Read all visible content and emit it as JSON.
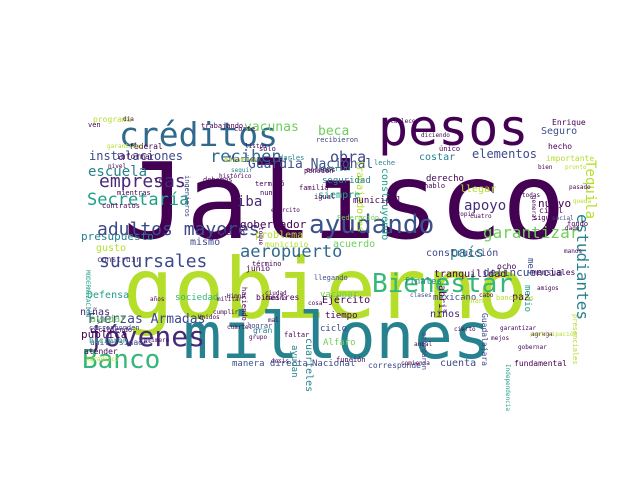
{
  "words": [
    {
      "t": "Jalisco",
      "c": "#440154"
    },
    {
      "t": "gobierno",
      "c": "#b5de2b"
    },
    {
      "t": "millones",
      "c": "#26828e"
    },
    {
      "t": "pesos",
      "c": "#440154"
    },
    {
      "t": "créditos",
      "c": "#31688e"
    },
    {
      "t": "ayudando",
      "c": "#3b528b"
    },
    {
      "t": "jóvenes",
      "c": "#482878"
    },
    {
      "t": "Bienestar",
      "c": "#35b779"
    },
    {
      "t": "Banco",
      "c": "#35b779"
    },
    {
      "t": "adultos mayores",
      "c": "#3e4989"
    },
    {
      "t": "sucursales",
      "c": "#3e4989"
    },
    {
      "t": "empresas",
      "c": "#482878"
    },
    {
      "t": "Secretaría",
      "c": "#1f9e89"
    },
    {
      "t": "garantizar",
      "c": "#6ece58"
    },
    {
      "t": "estudiantes",
      "c": "#26828e"
    },
    {
      "t": "aeropuerto",
      "c": "#31688e"
    },
    {
      "t": "reciben",
      "c": "#31688e"
    },
    {
      "t": "apoyo",
      "c": "#472d7b"
    },
    {
      "t": "Tequila",
      "c": "#b5de2b"
    },
    {
      "t": "obra",
      "c": "#3e4989"
    },
    {
      "t": "escuela",
      "c": "#26828e"
    },
    {
      "t": "elementos",
      "c": "#3e4989"
    },
    {
      "t": "vacunas",
      "c": "#6ece58"
    },
    {
      "t": "beca",
      "c": "#6ece58"
    },
    {
      "t": "Guardia Nacional",
      "c": "#3b528b"
    },
    {
      "t": "Fuerzas Armadas",
      "c": "#3e4989"
    },
    {
      "t": "instalaciones",
      "c": "#3e4989"
    },
    {
      "t": "país",
      "c": "#26828e"
    },
    {
      "t": "iba",
      "c": "#482878"
    },
    {
      "t": "gobernador",
      "c": "#440154"
    },
    {
      "t": "tranquilidad",
      "c": "#440154"
    },
    {
      "t": "delincuencia",
      "c": "#3e4989"
    },
    {
      "t": "construcción",
      "c": "#3e4989"
    },
    {
      "t": "nuevo",
      "c": "#440154"
    },
    {
      "t": "Seguro",
      "c": "#3b528b"
    },
    {
      "t": "Enrique",
      "c": "#440154"
    },
    {
      "t": "hecho",
      "c": "#440154"
    },
    {
      "t": "presupuesto",
      "c": "#26828e"
    },
    {
      "t": "pública",
      "c": "#440154"
    },
    {
      "t": "niñas",
      "c": "#482878"
    },
    {
      "t": "niños",
      "c": "#482878"
    },
    {
      "t": "mismo",
      "c": "#3e4989"
    },
    {
      "t": "problema",
      "c": "#b5de2b"
    },
    {
      "t": "acuerdo",
      "c": "#6ece58"
    },
    {
      "t": "construyendo",
      "c": "#1f9e89"
    },
    {
      "t": "trabajadores",
      "c": "#b5de2b"
    },
    {
      "t": "seguridad",
      "c": "#26828e"
    },
    {
      "t": "siempre",
      "c": "#1f9e89"
    },
    {
      "t": "municipal",
      "c": "#440154"
    },
    {
      "t": "derecho",
      "c": "#440154"
    },
    {
      "t": "costar",
      "c": "#26828e"
    },
    {
      "t": "llegar",
      "c": "#b5de2b"
    },
    {
      "t": "Ejército",
      "c": "#440154"
    },
    {
      "t": "ciclo",
      "c": "#3e4989"
    },
    {
      "t": "tiempo",
      "c": "#440154"
    },
    {
      "t": "Alfaro",
      "c": "#6ece58"
    },
    {
      "t": "cuarteles",
      "c": "#26828e"
    },
    {
      "t": "sociedad",
      "c": "#35b779"
    },
    {
      "t": "Defensa",
      "c": "#1f9e89"
    },
    {
      "t": "ayudar",
      "c": "#6ece58"
    },
    {
      "t": "construir",
      "c": "#472d7b"
    },
    {
      "t": "gusto",
      "c": "#b5de2b"
    },
    {
      "t": "atender",
      "c": "#440154"
    },
    {
      "t": "universidades",
      "c": "#3e4989"
    },
    {
      "t": "manera directa",
      "c": "#3b528b"
    },
    {
      "t": "Nacional",
      "c": "#3e4989"
    },
    {
      "t": "corresponde",
      "c": "#3e4989"
    },
    {
      "t": "cuenta",
      "c": "#3e4989"
    },
    {
      "t": "fundamental",
      "c": "#440154"
    },
    {
      "t": "mexicano",
      "c": "#3e4989"
    },
    {
      "t": "Guadalajara",
      "c": "#3e4989"
    },
    {
      "t": "ayudan",
      "c": "#26828e"
    },
    {
      "t": "vacunar",
      "c": "#6ece58"
    },
    {
      "t": "bimestres",
      "c": "#440154"
    },
    {
      "t": "junio",
      "c": "#440154"
    },
    {
      "t": "término",
      "c": "#440154"
    },
    {
      "t": "pueblo",
      "c": "#440154"
    },
    {
      "t": "municipio",
      "c": "#b5de2b"
    },
    {
      "t": "abril",
      "c": "#440154"
    },
    {
      "t": "medio",
      "c": "#1f9e89"
    },
    {
      "t": "mes",
      "c": "#3e4989"
    },
    {
      "t": "finales",
      "c": "#26828e"
    },
    {
      "t": "paz",
      "c": "#440154"
    },
    {
      "t": "ocho",
      "c": "#440154"
    },
    {
      "t": "mensuales",
      "c": "#440154"
    },
    {
      "t": "civil",
      "c": "#440154"
    },
    {
      "t": "Federación",
      "c": "#6ece58"
    },
    {
      "t": "Marina",
      "c": "#3e4989"
    },
    {
      "t": "familia",
      "c": "#440154"
    },
    {
      "t": "terminó",
      "c": "#440154"
    },
    {
      "t": "debemos",
      "c": "#440154"
    },
    {
      "t": "federal",
      "c": "#440154"
    },
    {
      "t": "trabajando",
      "c": "#440154"
    },
    {
      "t": "programa",
      "c": "#b5de2b"
    },
    {
      "t": "corte",
      "c": "#440154"
    },
    {
      "t": "sólo",
      "c": "#440154"
    },
    {
      "t": "nunca",
      "c": "#440154"
    },
    {
      "t": "recibieron",
      "c": "#3e4989"
    },
    {
      "t": "superior",
      "c": "#1f9e89"
    },
    {
      "t": "pensión",
      "c": "#440154"
    },
    {
      "t": "igual",
      "c": "#440154"
    },
    {
      "t": "hablo",
      "c": "#440154"
    },
    {
      "t": "leche",
      "c": "#26828e"
    },
    {
      "t": "único",
      "c": "#440154"
    },
    {
      "t": "importante",
      "c": "#b5de2b"
    },
    {
      "t": "bien",
      "c": "#440154"
    },
    {
      "t": "todas",
      "c": "#440154"
    },
    {
      "t": "sigue",
      "c": "#440154"
    },
    {
      "t": "gran",
      "c": "#26828e"
    },
    {
      "t": "lograr",
      "c": "#3e4989"
    },
    {
      "t": "recibiendo",
      "c": "#440154"
    },
    {
      "t": "hicieron",
      "c": "#1f9e89"
    },
    {
      "t": "primero",
      "c": "#440154"
    },
    {
      "t": "años",
      "c": "#440154"
    },
    {
      "t": "nivel",
      "c": "#440154"
    },
    {
      "t": "informar",
      "c": "#440154"
    },
    {
      "t": "Tren",
      "c": "#440154"
    },
    {
      "t": "mientras",
      "c": "#440154"
    },
    {
      "t": "contratos",
      "c": "#440154"
    },
    {
      "t": "ingenieros",
      "c": "#3e4989"
    },
    {
      "t": "esfuerzo",
      "c": "#b5de2b"
    },
    {
      "t": "seguir",
      "c": "#26828e"
    },
    {
      "t": "darles",
      "c": "#26828e"
    },
    {
      "t": "estamos",
      "c": "#440154"
    },
    {
      "t": "establece",
      "c": "#440154"
    },
    {
      "t": "diciendo",
      "c": "#440154"
    },
    {
      "t": "ven",
      "c": "#440154"
    },
    {
      "t": "día",
      "c": "#440154"
    },
    {
      "t": "garantizar",
      "c": "#b5de2b"
    },
    {
      "t": "militar",
      "c": "#440154"
    },
    {
      "t": "camino",
      "c": "#440154"
    },
    {
      "t": "cosa",
      "c": "#440154"
    },
    {
      "t": "mañana",
      "c": "#b5de2b"
    },
    {
      "t": "bancarias",
      "c": "#b5de2b"
    },
    {
      "t": "Himno",
      "c": "#440154"
    },
    {
      "t": "función",
      "c": "#440154"
    },
    {
      "t": "comienza",
      "c": "#440154"
    },
    {
      "t": "dosis",
      "c": "#440154"
    },
    {
      "t": "mejos",
      "c": "#440154"
    },
    {
      "t": "agrega",
      "c": "#440154"
    },
    {
      "t": "llegando",
      "c": "#3e4989"
    },
    {
      "t": "faltar",
      "c": "#440154"
    },
    {
      "t": "mal",
      "c": "#440154"
    },
    {
      "t": "otorgaron",
      "c": "#3e4989"
    },
    {
      "t": "amigos",
      "c": "#440154"
    },
    {
      "t": "fondo",
      "c": "#440154"
    },
    {
      "t": "MODERNIZACIÓN",
      "c": "#1f9e89"
    },
    {
      "t": "corresponden",
      "c": "#3e4989"
    },
    {
      "t": "Agradezco",
      "c": "#b5de2b"
    },
    {
      "t": "Independencia",
      "c": "#1f9e89"
    },
    {
      "t": "Unidos",
      "c": "#440154"
    },
    {
      "t": "cuartel",
      "c": "#440154"
    },
    {
      "t": "grupo",
      "c": "#440154"
    },
    {
      "t": "anual",
      "c": "#440154"
    },
    {
      "t": "clases",
      "c": "#3e4989"
    },
    {
      "t": "presenciales",
      "c": "#b5de2b"
    },
    {
      "t": "pronto",
      "c": "#b5de2b"
    },
    {
      "t": "queda",
      "c": "#b5de2b"
    },
    {
      "t": "pasado",
      "c": "#440154"
    },
    {
      "t": "cuatro",
      "c": "#440154"
    },
    {
      "t": "toque",
      "c": "#440154"
    },
    {
      "t": "manos",
      "c": "#440154"
    },
    {
      "t": "social",
      "c": "#3e4989"
    },
    {
      "t": "dado",
      "c": "#440154"
    },
    {
      "t": "propio",
      "c": "#440154"
    },
    {
      "t": "gobernar",
      "c": "#440154"
    },
    {
      "t": "garantizar",
      "c": "#440154"
    },
    {
      "t": "cabo",
      "c": "#440154"
    },
    {
      "t": "cierto",
      "c": "#440154"
    },
    {
      "t": "ciudad",
      "c": "#440154"
    },
    {
      "t": "ejército",
      "c": "#440154"
    },
    {
      "t": "haciendo",
      "c": "#440154"
    },
    {
      "t": "participación",
      "c": "#b5de2b"
    },
    {
      "t": "cumplir",
      "c": "#440154"
    },
    {
      "t": "listón",
      "c": "#440154"
    },
    {
      "t": "histórico",
      "c": "#440154"
    },
    {
      "t": "general",
      "c": "#440154"
    },
    {
      "t": "empresas",
      "c": "#440154"
    }
  ]
}
